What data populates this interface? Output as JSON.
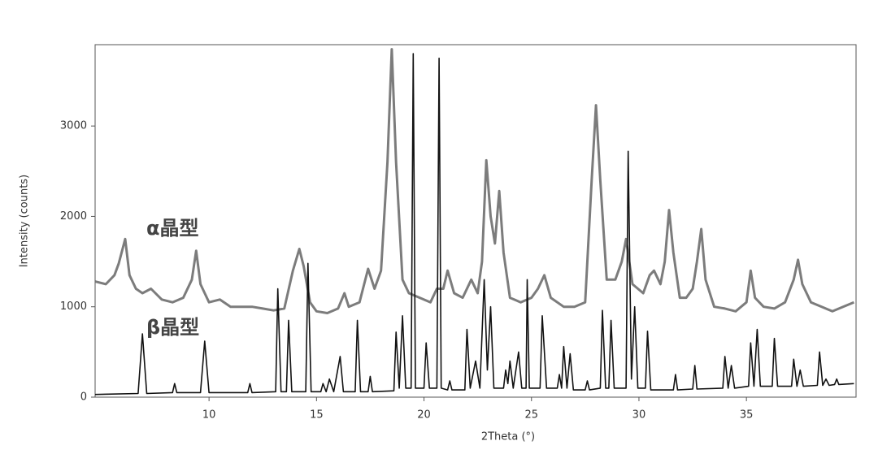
{
  "chart_data": {
    "type": "line",
    "x_label": "2Theta (°)",
    "y_label": "Intensity (counts)",
    "xlim": [
      4.7,
      40.1
    ],
    "ylim": [
      0,
      3900
    ],
    "xticks": [
      10,
      15,
      20,
      25,
      30,
      35
    ],
    "yticks": [
      0,
      1000,
      2000,
      3000
    ],
    "series": [
      {
        "name": "α晶型",
        "color": "#6e6e6e",
        "x": [
          4.7,
          5.2,
          5.6,
          5.8,
          6.1,
          6.3,
          6.6,
          6.9,
          7.3,
          7.8,
          8.3,
          8.8,
          9.2,
          9.4,
          9.6,
          10.0,
          10.5,
          11.0,
          11.5,
          12.0,
          12.5,
          13.0,
          13.5,
          13.9,
          14.2,
          14.4,
          14.7,
          15.0,
          15.5,
          16.0,
          16.3,
          16.5,
          17.0,
          17.4,
          17.7,
          18.0,
          18.3,
          18.5,
          18.7,
          19.0,
          19.3,
          19.8,
          20.3,
          20.6,
          20.9,
          21.1,
          21.4,
          21.8,
          22.2,
          22.5,
          22.7,
          22.9,
          23.1,
          23.3,
          23.5,
          23.7,
          24.0,
          24.5,
          25.0,
          25.3,
          25.6,
          25.9,
          26.5,
          27.0,
          27.5,
          27.8,
          28.0,
          28.2,
          28.5,
          28.9,
          29.2,
          29.4,
          29.7,
          30.2,
          30.5,
          30.7,
          31.0,
          31.2,
          31.4,
          31.6,
          31.9,
          32.2,
          32.5,
          32.7,
          32.9,
          33.1,
          33.5,
          34.0,
          34.5,
          35.0,
          35.2,
          35.4,
          35.8,
          36.3,
          36.8,
          37.2,
          37.4,
          37.6,
          38.0,
          38.5,
          39.0,
          39.5,
          40.0
        ],
        "values": [
          1280,
          1250,
          1350,
          1480,
          1750,
          1350,
          1200,
          1150,
          1200,
          1080,
          1050,
          1100,
          1300,
          1620,
          1250,
          1050,
          1080,
          1000,
          1000,
          1000,
          980,
          960,
          980,
          1400,
          1640,
          1450,
          1050,
          950,
          930,
          980,
          1150,
          1000,
          1050,
          1420,
          1200,
          1400,
          2600,
          3850,
          2600,
          1300,
          1150,
          1100,
          1050,
          1200,
          1200,
          1400,
          1150,
          1100,
          1300,
          1150,
          1500,
          2620,
          2000,
          1700,
          2280,
          1600,
          1100,
          1050,
          1100,
          1200,
          1350,
          1100,
          1000,
          1000,
          1050,
          2400,
          3230,
          2400,
          1300,
          1300,
          1500,
          1750,
          1250,
          1150,
          1350,
          1400,
          1250,
          1500,
          2070,
          1600,
          1100,
          1100,
          1200,
          1500,
          1860,
          1300,
          1000,
          980,
          950,
          1050,
          1400,
          1100,
          1000,
          980,
          1050,
          1300,
          1520,
          1250,
          1050,
          1000,
          950,
          1000,
          1050
        ]
      },
      {
        "name": "β晶型",
        "color": "#111111",
        "x": [
          4.7,
          6.7,
          6.9,
          7.1,
          8.3,
          8.4,
          8.5,
          9.6,
          9.8,
          10.0,
          11.8,
          11.9,
          12.0,
          13.1,
          13.2,
          13.35,
          13.6,
          13.7,
          13.85,
          14.5,
          14.6,
          14.75,
          15.2,
          15.3,
          15.45,
          15.6,
          15.8,
          16.1,
          16.25,
          16.8,
          16.9,
          17.05,
          17.4,
          17.5,
          17.6,
          18.6,
          18.7,
          18.85,
          19.0,
          19.15,
          19.4,
          19.5,
          19.6,
          20.0,
          20.1,
          20.25,
          20.6,
          20.7,
          20.8,
          21.1,
          21.2,
          21.3,
          21.9,
          22.0,
          22.15,
          22.4,
          22.6,
          22.8,
          22.95,
          23.1,
          23.25,
          23.7,
          23.8,
          23.9,
          24.0,
          24.15,
          24.4,
          24.55,
          24.75,
          24.8,
          24.9,
          25.4,
          25.5,
          25.7,
          26.2,
          26.3,
          26.4,
          26.5,
          26.65,
          26.8,
          26.95,
          27.5,
          27.6,
          27.7,
          28.2,
          28.3,
          28.45,
          28.6,
          28.7,
          28.85,
          29.4,
          29.5,
          29.65,
          29.8,
          29.95,
          30.3,
          30.4,
          30.55,
          31.6,
          31.7,
          31.8,
          32.5,
          32.6,
          32.7,
          33.9,
          34.0,
          34.15,
          34.3,
          34.45,
          35.1,
          35.2,
          35.35,
          35.5,
          35.65,
          36.2,
          36.3,
          36.45,
          37.1,
          37.2,
          37.35,
          37.5,
          37.65,
          38.3,
          38.4,
          38.55,
          38.7,
          38.85,
          39.1,
          39.2,
          39.3,
          40.0
        ],
        "values": [
          30,
          40,
          700,
          40,
          50,
          150,
          50,
          50,
          620,
          50,
          50,
          150,
          50,
          60,
          1200,
          60,
          60,
          850,
          60,
          60,
          1480,
          60,
          60,
          150,
          60,
          200,
          60,
          450,
          60,
          60,
          850,
          60,
          60,
          230,
          60,
          70,
          720,
          100,
          900,
          100,
          100,
          3800,
          100,
          100,
          600,
          100,
          100,
          3750,
          100,
          80,
          180,
          80,
          80,
          750,
          100,
          400,
          100,
          1300,
          300,
          1000,
          100,
          100,
          300,
          150,
          400,
          100,
          500,
          100,
          100,
          1300,
          100,
          100,
          900,
          100,
          100,
          250,
          100,
          560,
          100,
          480,
          80,
          80,
          180,
          80,
          100,
          960,
          100,
          100,
          850,
          100,
          100,
          2720,
          200,
          1000,
          100,
          100,
          730,
          80,
          80,
          250,
          80,
          90,
          350,
          90,
          100,
          450,
          100,
          350,
          100,
          120,
          600,
          120,
          750,
          120,
          120,
          650,
          120,
          120,
          420,
          120,
          300,
          120,
          130,
          500,
          130,
          200,
          130,
          140,
          200,
          140,
          150
        ]
      }
    ]
  }
}
